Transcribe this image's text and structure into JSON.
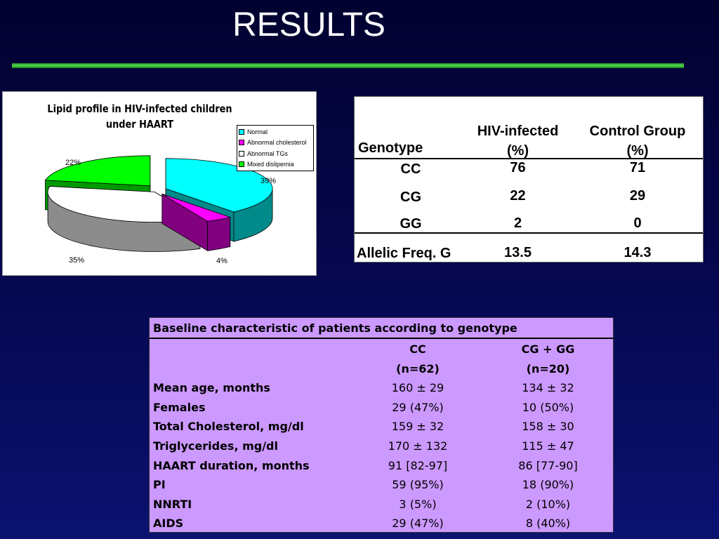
{
  "slide": {
    "title": "RESULTS"
  },
  "chart_data": {
    "type": "pie",
    "title_lines": [
      "Lipid profile in HIV-infected children",
      "under HAART"
    ],
    "categories": [
      "Normal",
      "Abnormal cholesterol",
      "Abnormal TGs",
      "Mixed dislipemia"
    ],
    "values": [
      39,
      4,
      35,
      22
    ],
    "value_labels": [
      "39%",
      "4%",
      "35%",
      "22%"
    ],
    "colors": [
      "#00ffff",
      "#ff00ff",
      "#ffffff",
      "#00ff00"
    ],
    "side_colors": [
      "#008a8a",
      "#800080",
      "#8c8c8c",
      "#009a00"
    ],
    "legend_position": "right"
  },
  "genotype_table": {
    "headers": [
      "Genotype",
      "HIV-infected",
      "(%)",
      "Control Group",
      "(%)"
    ],
    "rows": [
      {
        "genotype": "CC",
        "hiv": "76",
        "control": "71"
      },
      {
        "genotype": "CG",
        "hiv": "22",
        "control": "29"
      },
      {
        "genotype": "GG",
        "hiv": "2",
        "control": "0"
      }
    ],
    "allelic": {
      "label": "Allelic Freq. G",
      "hiv": "13.5",
      "control": "14.3"
    }
  },
  "baseline_table": {
    "title": "Baseline characteristic of patients according to genotype",
    "col_headers": [
      "CC",
      "CG + GG"
    ],
    "col_subheaders": [
      "(n=62)",
      "(n=20)"
    ],
    "rows": [
      {
        "label": "Mean age, months",
        "cc": "160 ± 29",
        "cggg": "134 ± 32"
      },
      {
        "label": "Females",
        "cc": "29 (47%)",
        "cggg": "10 (50%)"
      },
      {
        "label": "Total Cholesterol, mg/dl",
        "cc": "159 ± 32",
        "cggg": "158 ± 30"
      },
      {
        "label": "Triglycerides, mg/dl",
        "cc": "170 ± 132",
        "cggg": "115 ± 47"
      },
      {
        "label": "HAART duration, months",
        "cc": "91 [82-97]",
        "cggg": "86 [77-90]"
      },
      {
        "label": "PI",
        "cc": "59 (95%)",
        "cggg": "18 (90%)"
      },
      {
        "label": "NNRTI",
        "cc": "3 (5%)",
        "cggg": "2 (10%)"
      },
      {
        "label": "AIDS",
        "cc": "29 (47%)",
        "cggg": "8 (40%)"
      }
    ]
  }
}
